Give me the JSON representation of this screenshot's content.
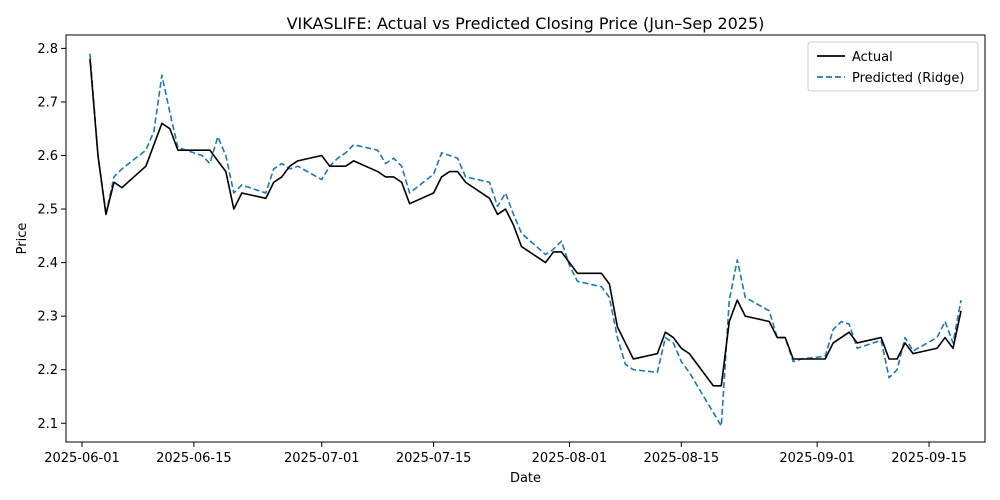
{
  "chart_data": {
    "type": "line",
    "title": "VIKASLIFE: Actual vs Predicted Closing Price (Jun–Sep 2025)",
    "xlabel": "Date",
    "ylabel": "Price",
    "xlim": [
      "2025-05-30",
      "2025-09-22"
    ],
    "ylim": [
      2.065,
      2.825
    ],
    "x_ticks": [
      "2025-06-01",
      "2025-06-15",
      "2025-07-01",
      "2025-07-15",
      "2025-08-01",
      "2025-08-15",
      "2025-09-01",
      "2025-09-15"
    ],
    "y_ticks": [
      "2.1",
      "2.2",
      "2.3",
      "2.4",
      "2.5",
      "2.6",
      "2.7",
      "2.8"
    ],
    "grid": false,
    "legend": "top-right",
    "series": [
      {
        "name": "Actual",
        "color": "#000000",
        "style": "solid",
        "points": [
          [
            "2025-06-02",
            2.78
          ],
          [
            "2025-06-03",
            2.6
          ],
          [
            "2025-06-04",
            2.49
          ],
          [
            "2025-06-05",
            2.55
          ],
          [
            "2025-06-06",
            2.54
          ],
          [
            "2025-06-09",
            2.58
          ],
          [
            "2025-06-10",
            2.62
          ],
          [
            "2025-06-11",
            2.66
          ],
          [
            "2025-06-12",
            2.65
          ],
          [
            "2025-06-13",
            2.61
          ],
          [
            "2025-06-16",
            2.61
          ],
          [
            "2025-06-17",
            2.61
          ],
          [
            "2025-06-18",
            2.59
          ],
          [
            "2025-06-19",
            2.57
          ],
          [
            "2025-06-20",
            2.5
          ],
          [
            "2025-06-21",
            2.53
          ],
          [
            "2025-06-24",
            2.52
          ],
          [
            "2025-06-25",
            2.55
          ],
          [
            "2025-06-26",
            2.56
          ],
          [
            "2025-06-27",
            2.58
          ],
          [
            "2025-06-28",
            2.59
          ],
          [
            "2025-07-01",
            2.6
          ],
          [
            "2025-07-02",
            2.58
          ],
          [
            "2025-07-03",
            2.58
          ],
          [
            "2025-07-04",
            2.58
          ],
          [
            "2025-07-05",
            2.59
          ],
          [
            "2025-07-08",
            2.57
          ],
          [
            "2025-07-09",
            2.56
          ],
          [
            "2025-07-10",
            2.56
          ],
          [
            "2025-07-11",
            2.55
          ],
          [
            "2025-07-12",
            2.51
          ],
          [
            "2025-07-15",
            2.53
          ],
          [
            "2025-07-16",
            2.56
          ],
          [
            "2025-07-17",
            2.57
          ],
          [
            "2025-07-18",
            2.57
          ],
          [
            "2025-07-19",
            2.55
          ],
          [
            "2025-07-22",
            2.52
          ],
          [
            "2025-07-23",
            2.49
          ],
          [
            "2025-07-24",
            2.5
          ],
          [
            "2025-07-25",
            2.47
          ],
          [
            "2025-07-26",
            2.43
          ],
          [
            "2025-07-29",
            2.4
          ],
          [
            "2025-07-30",
            2.42
          ],
          [
            "2025-07-31",
            2.42
          ],
          [
            "2025-08-01",
            2.4
          ],
          [
            "2025-08-02",
            2.38
          ],
          [
            "2025-08-05",
            2.38
          ],
          [
            "2025-08-06",
            2.36
          ],
          [
            "2025-08-07",
            2.28
          ],
          [
            "2025-08-08",
            2.25
          ],
          [
            "2025-08-09",
            2.22
          ],
          [
            "2025-08-12",
            2.23
          ],
          [
            "2025-08-13",
            2.27
          ],
          [
            "2025-08-14",
            2.26
          ],
          [
            "2025-08-15",
            2.24
          ],
          [
            "2025-08-16",
            2.23
          ],
          [
            "2025-08-19",
            2.17
          ],
          [
            "2025-08-20",
            2.17
          ],
          [
            "2025-08-21",
            2.29
          ],
          [
            "2025-08-22",
            2.33
          ],
          [
            "2025-08-23",
            2.3
          ],
          [
            "2025-08-26",
            2.29
          ],
          [
            "2025-08-27",
            2.26
          ],
          [
            "2025-08-28",
            2.26
          ],
          [
            "2025-08-29",
            2.22
          ],
          [
            "2025-08-30",
            2.22
          ],
          [
            "2025-09-02",
            2.22
          ],
          [
            "2025-09-03",
            2.25
          ],
          [
            "2025-09-05",
            2.27
          ],
          [
            "2025-09-06",
            2.25
          ],
          [
            "2025-09-09",
            2.26
          ],
          [
            "2025-09-10",
            2.22
          ],
          [
            "2025-09-11",
            2.22
          ],
          [
            "2025-09-12",
            2.25
          ],
          [
            "2025-09-13",
            2.23
          ],
          [
            "2025-09-16",
            2.24
          ],
          [
            "2025-09-17",
            2.26
          ],
          [
            "2025-09-18",
            2.24
          ],
          [
            "2025-09-19",
            2.31
          ]
        ]
      },
      {
        "name": "Predicted (Ridge)",
        "color": "#1f77b4",
        "style": "dashed",
        "points": [
          [
            "2025-06-02",
            2.79
          ],
          [
            "2025-06-03",
            2.6
          ],
          [
            "2025-06-04",
            2.49
          ],
          [
            "2025-06-05",
            2.56
          ],
          [
            "2025-06-06",
            2.575
          ],
          [
            "2025-06-09",
            2.61
          ],
          [
            "2025-06-10",
            2.645
          ],
          [
            "2025-06-11",
            2.75
          ],
          [
            "2025-06-12",
            2.68
          ],
          [
            "2025-06-13",
            2.615
          ],
          [
            "2025-06-16",
            2.6
          ],
          [
            "2025-06-17",
            2.585
          ],
          [
            "2025-06-18",
            2.635
          ],
          [
            "2025-06-19",
            2.6
          ],
          [
            "2025-06-20",
            2.53
          ],
          [
            "2025-06-21",
            2.545
          ],
          [
            "2025-06-24",
            2.53
          ],
          [
            "2025-06-25",
            2.575
          ],
          [
            "2025-06-26",
            2.585
          ],
          [
            "2025-06-27",
            2.575
          ],
          [
            "2025-06-28",
            2.58
          ],
          [
            "2025-07-01",
            2.555
          ],
          [
            "2025-07-02",
            2.58
          ],
          [
            "2025-07-03",
            2.595
          ],
          [
            "2025-07-04",
            2.605
          ],
          [
            "2025-07-05",
            2.62
          ],
          [
            "2025-07-08",
            2.61
          ],
          [
            "2025-07-09",
            2.585
          ],
          [
            "2025-07-10",
            2.595
          ],
          [
            "2025-07-11",
            2.58
          ],
          [
            "2025-07-12",
            2.53
          ],
          [
            "2025-07-15",
            2.565
          ],
          [
            "2025-07-16",
            2.605
          ],
          [
            "2025-07-17",
            2.6
          ],
          [
            "2025-07-18",
            2.595
          ],
          [
            "2025-07-19",
            2.56
          ],
          [
            "2025-07-22",
            2.55
          ],
          [
            "2025-07-23",
            2.505
          ],
          [
            "2025-07-24",
            2.53
          ],
          [
            "2025-07-25",
            2.49
          ],
          [
            "2025-07-26",
            2.455
          ],
          [
            "2025-07-29",
            2.415
          ],
          [
            "2025-07-30",
            2.425
          ],
          [
            "2025-07-31",
            2.44
          ],
          [
            "2025-08-01",
            2.395
          ],
          [
            "2025-08-02",
            2.365
          ],
          [
            "2025-08-05",
            2.355
          ],
          [
            "2025-08-06",
            2.335
          ],
          [
            "2025-08-07",
            2.26
          ],
          [
            "2025-08-08",
            2.21
          ],
          [
            "2025-08-09",
            2.2
          ],
          [
            "2025-08-12",
            2.195
          ],
          [
            "2025-08-13",
            2.26
          ],
          [
            "2025-08-14",
            2.25
          ],
          [
            "2025-08-15",
            2.215
          ],
          [
            "2025-08-16",
            2.195
          ],
          [
            "2025-08-19",
            2.12
          ],
          [
            "2025-08-20",
            2.095
          ],
          [
            "2025-08-21",
            2.33
          ],
          [
            "2025-08-22",
            2.405
          ],
          [
            "2025-08-23",
            2.335
          ],
          [
            "2025-08-26",
            2.31
          ],
          [
            "2025-08-27",
            2.26
          ],
          [
            "2025-08-28",
            2.26
          ],
          [
            "2025-08-29",
            2.215
          ],
          [
            "2025-08-30",
            2.22
          ],
          [
            "2025-09-02",
            2.225
          ],
          [
            "2025-09-03",
            2.275
          ],
          [
            "2025-09-04",
            2.29
          ],
          [
            "2025-09-05",
            2.285
          ],
          [
            "2025-09-06",
            2.24
          ],
          [
            "2025-09-09",
            2.255
          ],
          [
            "2025-09-10",
            2.185
          ],
          [
            "2025-09-11",
            2.2
          ],
          [
            "2025-09-12",
            2.26
          ],
          [
            "2025-09-13",
            2.235
          ],
          [
            "2025-09-16",
            2.26
          ],
          [
            "2025-09-17",
            2.29
          ],
          [
            "2025-09-18",
            2.25
          ],
          [
            "2025-09-19",
            2.33
          ]
        ]
      }
    ]
  }
}
